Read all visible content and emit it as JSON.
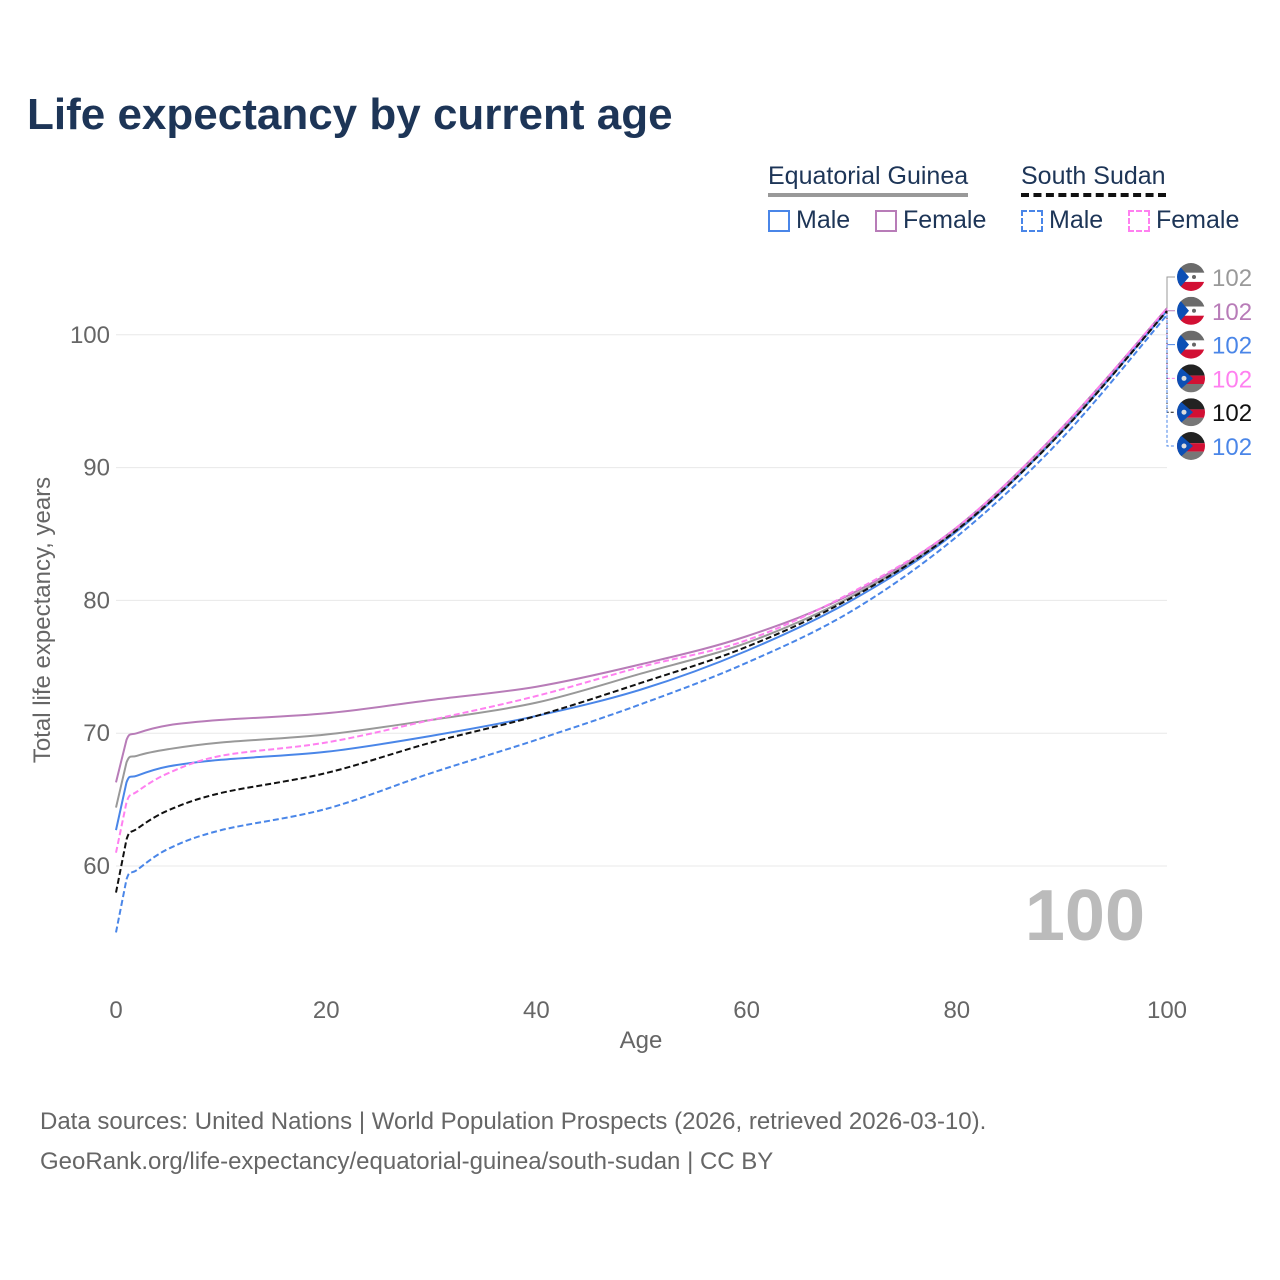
{
  "title": "Life expectancy by current age",
  "legend": {
    "groups": [
      {
        "name": "Equatorial Guinea",
        "items": [
          "Male",
          "Female"
        ]
      },
      {
        "name": "South Sudan",
        "items": [
          "Male",
          "Female"
        ]
      }
    ]
  },
  "watermark": "100",
  "sources": {
    "line1": "Data sources: United Nations | World Population Prospects (2026, retrieved 2026-03-10).",
    "line2": "GeoRank.org/life-expectancy/equatorial-guinea/south-sudan | CC BY"
  },
  "chart_data": {
    "type": "line",
    "title": "Life expectancy by current age",
    "xlabel": "Age",
    "ylabel": "Total life expectancy, years",
    "xlim": [
      0,
      100
    ],
    "ylim": [
      55,
      103
    ],
    "xticks": [
      "0",
      "20",
      "40",
      "60",
      "80",
      "100"
    ],
    "yticks": [
      "60",
      "70",
      "80",
      "90",
      "100"
    ],
    "x": [
      0,
      1,
      2,
      5,
      10,
      20,
      30,
      40,
      50,
      60,
      70,
      80,
      90,
      100
    ],
    "series": [
      {
        "name": "Equatorial Guinea (both)",
        "color": "#999999",
        "dash": false,
        "end_label": "102",
        "flag": "equatorial-guinea",
        "values": [
          64.4,
          67.8,
          68.3,
          68.8,
          69.3,
          69.9,
          71.0,
          72.3,
          74.5,
          76.8,
          80.3,
          85.3,
          92.8,
          102
        ]
      },
      {
        "name": "Equatorial Guinea Female",
        "color": "#b87cb8",
        "dash": false,
        "end_label": "102",
        "flag": "equatorial-guinea",
        "values": [
          66.3,
          69.5,
          70.0,
          70.6,
          71.0,
          71.5,
          72.5,
          73.5,
          75.2,
          77.3,
          80.5,
          85.5,
          93.0,
          102
        ]
      },
      {
        "name": "Equatorial Guinea Male",
        "color": "#4a86e8",
        "dash": false,
        "end_label": "102",
        "flag": "equatorial-guinea",
        "values": [
          62.7,
          66.3,
          66.8,
          67.5,
          68.0,
          68.6,
          69.8,
          71.3,
          73.3,
          76.2,
          80.0,
          85.2,
          92.7,
          101.8
        ]
      },
      {
        "name": "South Sudan Female",
        "color": "#ff80f0",
        "dash": true,
        "end_label": "102",
        "flag": "south-sudan",
        "values": [
          61.0,
          64.8,
          65.6,
          67.0,
          68.3,
          69.3,
          71.0,
          72.8,
          75.0,
          77.0,
          80.6,
          85.5,
          93.0,
          102
        ]
      },
      {
        "name": "South Sudan (both)",
        "color": "#111111",
        "dash": true,
        "end_label": "102",
        "flag": "south-sudan",
        "values": [
          58.0,
          62.0,
          62.8,
          64.2,
          65.5,
          67.0,
          69.3,
          71.3,
          73.8,
          76.5,
          80.2,
          85.3,
          92.7,
          101.8
        ]
      },
      {
        "name": "South Sudan Male",
        "color": "#4a86e8",
        "dash": true,
        "end_label": "102",
        "flag": "south-sudan",
        "values": [
          55.0,
          59.0,
          59.7,
          61.3,
          62.7,
          64.3,
          67.0,
          69.5,
          72.2,
          75.3,
          79.2,
          84.8,
          92.2,
          101.5
        ]
      }
    ]
  }
}
